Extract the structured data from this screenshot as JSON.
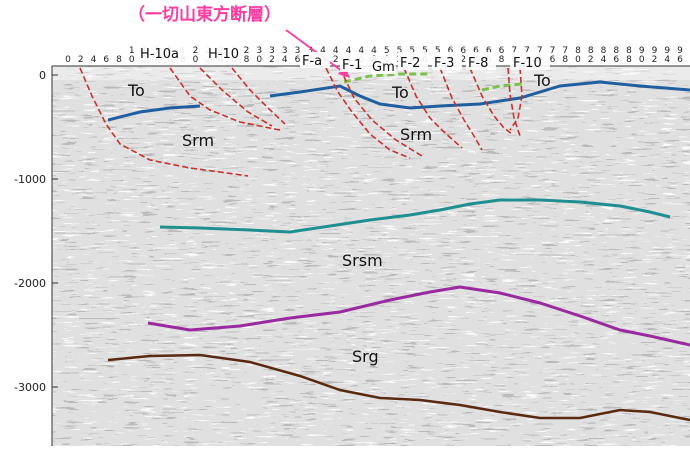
{
  "annotation": {
    "text": "（一切山東方断層）",
    "color": "#ff3aa0"
  },
  "trace_numbers": [
    "0",
    "2",
    "4",
    "6",
    "8",
    "10",
    "12",
    "14",
    "16",
    "18",
    "20",
    "22",
    "24",
    "26",
    "28",
    "30",
    "32",
    "34",
    "36",
    "38",
    "40",
    "42",
    "44",
    "46",
    "48",
    "50",
    "52",
    "54",
    "56",
    "58",
    "60",
    "62",
    "64",
    "66",
    "68",
    "70",
    "72",
    "74",
    "76",
    "78",
    "80",
    "82",
    "84",
    "86",
    "88",
    "90",
    "92",
    "94",
    "96"
  ],
  "depth_ticks": [
    {
      "value": 0,
      "label": "0"
    },
    {
      "value": -1000,
      "label": "-1000"
    },
    {
      "value": -2000,
      "label": "-2000"
    },
    {
      "value": -3000,
      "label": "-3000"
    }
  ],
  "fault_labels": [
    "H-10a",
    "H-10",
    "F-a",
    "F-1",
    "Gm",
    "F-2",
    "F-3",
    "F-8",
    "F-10"
  ],
  "unit_labels": [
    "To",
    "Srm",
    "To",
    "Srm",
    "To",
    "Srsm",
    "Srg"
  ],
  "colors": {
    "fault": "#c8322a",
    "to_horizon": "#1f5fa0",
    "srsm_horizon": "#1f8f90",
    "srg_horizon": "#9a2aa0",
    "basement_horizon": "#5a2a10",
    "gm": "#7ac24a",
    "annotation": "#ff3aa0"
  }
}
